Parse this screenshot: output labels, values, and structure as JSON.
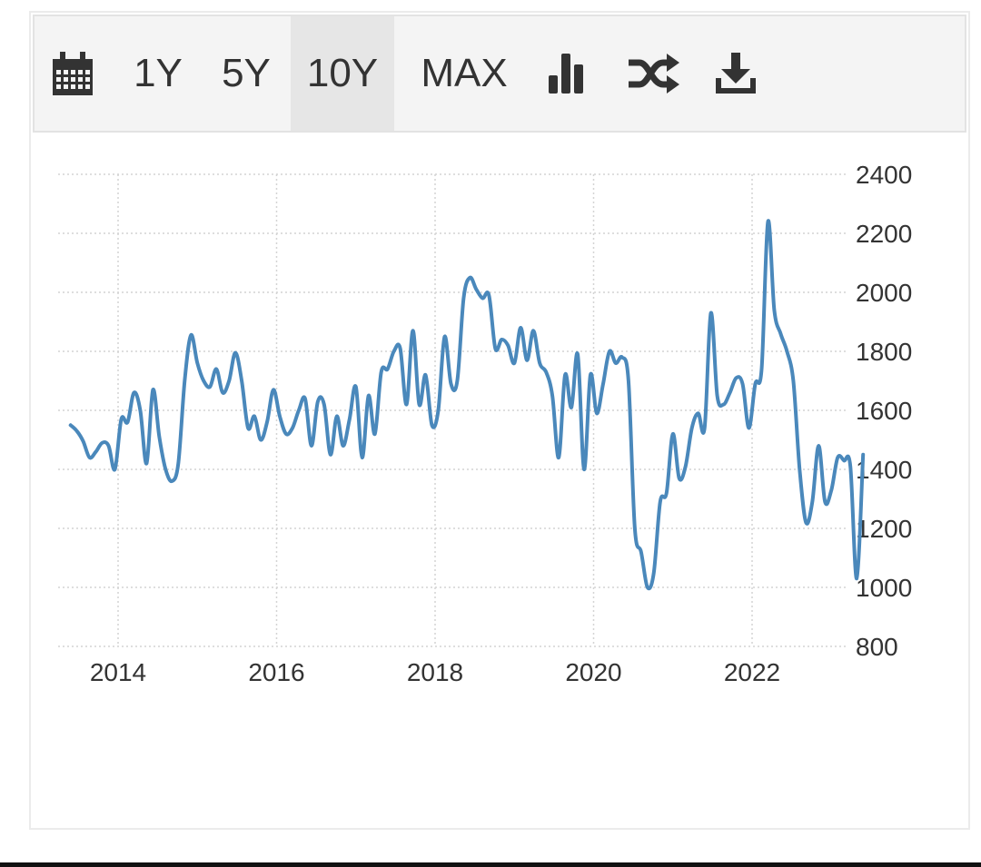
{
  "toolbar": {
    "items": [
      {
        "icon": "calendar-icon"
      },
      {
        "label": "1Y"
      },
      {
        "label": "5Y"
      },
      {
        "label": "10Y",
        "active": true
      },
      {
        "label": "MAX"
      },
      {
        "icon": "bar-chart-icon"
      },
      {
        "icon": "shuffle-icon"
      },
      {
        "icon": "download-icon"
      }
    ]
  },
  "colors": {
    "line": "#4a88bb",
    "grid": "#d4d4d4",
    "text": "#333333",
    "toolbar_bg": "#f4f4f4",
    "active_bg": "#e6e6e6"
  },
  "chart_data": {
    "type": "line",
    "title": "",
    "xlabel": "",
    "ylabel": "",
    "ylim": [
      800,
      2400
    ],
    "y_ticks": [
      "2400",
      "2200",
      "2000",
      "1800",
      "1600",
      "1400",
      "1200",
      "1000",
      "800"
    ],
    "x_ticks": [
      "2014",
      "2016",
      "2018",
      "2020",
      "2022"
    ],
    "grid": true,
    "y_axis_position": "right",
    "series": [
      {
        "values": [
          [
            2013.4,
            1550
          ],
          [
            2013.48,
            1530
          ],
          [
            2013.56,
            1495
          ],
          [
            2013.64,
            1440
          ],
          [
            2013.72,
            1460
          ],
          [
            2013.8,
            1490
          ],
          [
            2013.88,
            1480
          ],
          [
            2013.96,
            1400
          ],
          [
            2014.04,
            1570
          ],
          [
            2014.12,
            1560
          ],
          [
            2014.2,
            1660
          ],
          [
            2014.28,
            1600
          ],
          [
            2014.36,
            1420
          ],
          [
            2014.44,
            1670
          ],
          [
            2014.52,
            1510
          ],
          [
            2014.6,
            1400
          ],
          [
            2014.68,
            1360
          ],
          [
            2014.76,
            1420
          ],
          [
            2014.84,
            1700
          ],
          [
            2014.92,
            1855
          ],
          [
            2015.0,
            1760
          ],
          [
            2015.08,
            1700
          ],
          [
            2015.16,
            1680
          ],
          [
            2015.24,
            1740
          ],
          [
            2015.32,
            1660
          ],
          [
            2015.4,
            1700
          ],
          [
            2015.48,
            1795
          ],
          [
            2015.56,
            1700
          ],
          [
            2015.64,
            1540
          ],
          [
            2015.72,
            1580
          ],
          [
            2015.8,
            1500
          ],
          [
            2015.88,
            1560
          ],
          [
            2015.96,
            1670
          ],
          [
            2016.04,
            1580
          ],
          [
            2016.12,
            1520
          ],
          [
            2016.2,
            1540
          ],
          [
            2016.28,
            1600
          ],
          [
            2016.36,
            1640
          ],
          [
            2016.44,
            1480
          ],
          [
            2016.52,
            1630
          ],
          [
            2016.6,
            1620
          ],
          [
            2016.68,
            1450
          ],
          [
            2016.76,
            1580
          ],
          [
            2016.84,
            1480
          ],
          [
            2016.92,
            1570
          ],
          [
            2017.0,
            1680
          ],
          [
            2017.08,
            1440
          ],
          [
            2017.16,
            1650
          ],
          [
            2017.24,
            1520
          ],
          [
            2017.32,
            1730
          ],
          [
            2017.4,
            1740
          ],
          [
            2017.48,
            1800
          ],
          [
            2017.56,
            1810
          ],
          [
            2017.64,
            1620
          ],
          [
            2017.72,
            1870
          ],
          [
            2017.8,
            1620
          ],
          [
            2017.88,
            1720
          ],
          [
            2017.96,
            1550
          ],
          [
            2018.04,
            1600
          ],
          [
            2018.12,
            1850
          ],
          [
            2018.2,
            1690
          ],
          [
            2018.28,
            1700
          ],
          [
            2018.36,
            1980
          ],
          [
            2018.44,
            2050
          ],
          [
            2018.52,
            2010
          ],
          [
            2018.6,
            1980
          ],
          [
            2018.68,
            1990
          ],
          [
            2018.76,
            1810
          ],
          [
            2018.84,
            1840
          ],
          [
            2018.92,
            1820
          ],
          [
            2019.0,
            1760
          ],
          [
            2019.08,
            1880
          ],
          [
            2019.16,
            1770
          ],
          [
            2019.24,
            1870
          ],
          [
            2019.32,
            1760
          ],
          [
            2019.4,
            1730
          ],
          [
            2019.48,
            1650
          ],
          [
            2019.56,
            1440
          ],
          [
            2019.64,
            1720
          ],
          [
            2019.72,
            1610
          ],
          [
            2019.8,
            1790
          ],
          [
            2019.88,
            1400
          ],
          [
            2019.96,
            1720
          ],
          [
            2020.04,
            1590
          ],
          [
            2020.12,
            1690
          ],
          [
            2020.2,
            1800
          ],
          [
            2020.28,
            1760
          ],
          [
            2020.36,
            1780
          ],
          [
            2020.44,
            1700
          ],
          [
            2020.52,
            1200
          ],
          [
            2020.6,
            1120
          ],
          [
            2020.68,
            1000
          ],
          [
            2020.76,
            1050
          ],
          [
            2020.84,
            1290
          ],
          [
            2020.92,
            1320
          ],
          [
            2021.0,
            1520
          ],
          [
            2021.08,
            1370
          ],
          [
            2021.16,
            1410
          ],
          [
            2021.24,
            1540
          ],
          [
            2021.32,
            1590
          ],
          [
            2021.4,
            1540
          ],
          [
            2021.48,
            1930
          ],
          [
            2021.56,
            1650
          ],
          [
            2021.64,
            1620
          ],
          [
            2021.72,
            1660
          ],
          [
            2021.8,
            1710
          ],
          [
            2021.88,
            1690
          ],
          [
            2021.96,
            1540
          ],
          [
            2022.04,
            1690
          ],
          [
            2022.12,
            1740
          ],
          [
            2022.2,
            2240
          ],
          [
            2022.28,
            1940
          ],
          [
            2022.36,
            1860
          ],
          [
            2022.44,
            1800
          ],
          [
            2022.52,
            1700
          ],
          [
            2022.6,
            1400
          ],
          [
            2022.68,
            1220
          ],
          [
            2022.76,
            1290
          ],
          [
            2022.84,
            1480
          ],
          [
            2022.92,
            1290
          ],
          [
            2023.0,
            1330
          ],
          [
            2023.08,
            1440
          ],
          [
            2023.16,
            1430
          ],
          [
            2023.24,
            1410
          ],
          [
            2023.32,
            1030
          ],
          [
            2023.4,
            1450
          ]
        ]
      }
    ]
  }
}
